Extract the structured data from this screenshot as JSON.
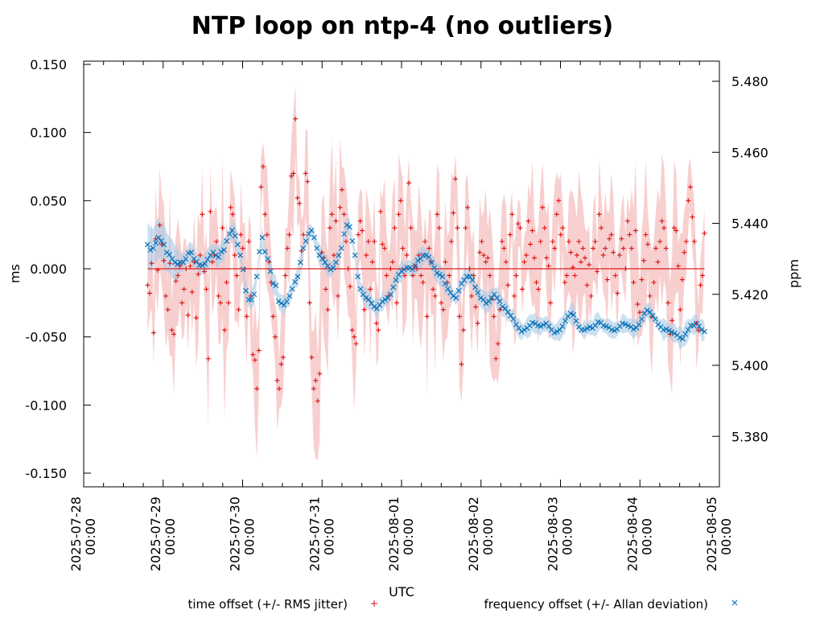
{
  "chart_data": {
    "type": "scatter",
    "title": "NTP loop on ntp-4 (no outliers)",
    "xlabel": "UTC",
    "ylabel": "ms",
    "y2label": "ppm",
    "x_start": "2025-07-28 00:00",
    "x_unit": "hours since 2025-07-28 00:00",
    "xlim": [
      0,
      192
    ],
    "ylim": [
      -0.16,
      0.152
    ],
    "y2lim": [
      5.3655,
      5.4855
    ],
    "x_ticks": [
      {
        "hours": 0,
        "date": "2025-07-28",
        "time": "00:00"
      },
      {
        "hours": 24,
        "date": "2025-07-29",
        "time": "00:00"
      },
      {
        "hours": 48,
        "date": "2025-07-30",
        "time": "00:00"
      },
      {
        "hours": 72,
        "date": "2025-07-31",
        "time": "00:00"
      },
      {
        "hours": 96,
        "date": "2025-08-01",
        "time": "00:00"
      },
      {
        "hours": 120,
        "date": "2025-08-02",
        "time": "00:00"
      },
      {
        "hours": 144,
        "date": "2025-08-03",
        "time": "00:00"
      },
      {
        "hours": 168,
        "date": "2025-08-04",
        "time": "00:00"
      },
      {
        "hours": 192,
        "date": "2025-08-05",
        "time": "00:00"
      }
    ],
    "x_minor_tick_hours": 6,
    "y_ticks": [
      {
        "value": 0.15,
        "label": "0.150"
      },
      {
        "value": 0.1,
        "label": "0.100"
      },
      {
        "value": 0.05,
        "label": "0.050"
      },
      {
        "value": 0.0,
        "label": "0.000"
      },
      {
        "value": -0.05,
        "label": "-0.050"
      },
      {
        "value": -0.1,
        "label": "-0.100"
      },
      {
        "value": -0.15,
        "label": "-0.150"
      }
    ],
    "y2_ticks": [
      {
        "value": 5.48,
        "label": "5.480"
      },
      {
        "value": 5.46,
        "label": "5.460"
      },
      {
        "value": 5.44,
        "label": "5.440"
      },
      {
        "value": 5.42,
        "label": "5.420"
      },
      {
        "value": 5.4,
        "label": "5.400"
      },
      {
        "value": 5.38,
        "label": "5.380"
      }
    ],
    "reference_line": {
      "axis": "y",
      "value": 0.0,
      "color": "#dd2222"
    },
    "legend": {
      "placement": "bottom"
    },
    "series": [
      {
        "name": "time offset (+/- RMS jitter)",
        "axis": "left",
        "marker": "+",
        "color": "#dd1111",
        "band_color": "#f5b5b5",
        "t_start_hours": 19.3,
        "t_end_hours": 187.5,
        "values": [
          -0.012,
          -0.018,
          0.004,
          -0.047,
          0.022,
          -0.001,
          0.032,
          0.018,
          0.006,
          -0.02,
          -0.03,
          0.004,
          -0.045,
          -0.048,
          -0.009,
          -0.005,
          0.002,
          -0.025,
          -0.015,
          0.0,
          -0.034,
          0.002,
          -0.017,
          0.005,
          -0.036,
          -0.004,
          0.01,
          0.04,
          -0.002,
          -0.015,
          -0.066,
          0.042,
          0.005,
          0.01,
          0.02,
          -0.02,
          -0.025,
          0.03,
          -0.045,
          -0.01,
          -0.025,
          0.045,
          0.04,
          0.01,
          -0.005,
          -0.03,
          0.025,
          0.015,
          0.0,
          -0.035,
          0.02,
          -0.02,
          -0.063,
          -0.067,
          -0.088,
          -0.06,
          0.06,
          0.075,
          0.04,
          0.025,
          0.005,
          -0.01,
          -0.035,
          -0.05,
          -0.082,
          -0.088,
          -0.07,
          -0.065,
          -0.005,
          0.015,
          0.025,
          0.068,
          0.07,
          0.11,
          0.052,
          0.048,
          0.013,
          0.025,
          0.07,
          0.064,
          -0.025,
          -0.065,
          -0.088,
          -0.082,
          -0.097,
          -0.077,
          0.012,
          0.008,
          -0.015,
          -0.03,
          0.03,
          0.04,
          0.01,
          0.035,
          -0.02,
          0.045,
          0.058,
          0.04,
          0.02,
          0.0,
          -0.013,
          -0.045,
          -0.05,
          -0.055,
          0.025,
          0.035,
          0.028,
          -0.03,
          0.01,
          0.02,
          -0.015,
          0.005,
          0.02,
          -0.04,
          -0.045,
          0.042,
          0.018,
          0.015,
          -0.005,
          -0.02,
          0.0,
          0.005,
          0.03,
          -0.025,
          0.04,
          0.05,
          0.015,
          -0.005,
          0.01,
          0.063,
          0.03,
          -0.005,
          0.002,
          0.0,
          0.01,
          -0.005,
          -0.01,
          0.02,
          -0.035,
          0.015,
          0.005,
          -0.015,
          -0.02,
          0.04,
          0.03,
          -0.025,
          -0.03,
          0.005,
          -0.01,
          -0.005,
          0.02,
          0.041,
          0.066,
          0.03,
          -0.035,
          -0.07,
          -0.045,
          0.03,
          0.045,
          0.0,
          -0.02,
          -0.005,
          -0.028,
          -0.04,
          0.012,
          0.02,
          0.01,
          0.005,
          0.008,
          -0.005,
          -0.022,
          -0.035,
          -0.066,
          -0.055,
          -0.03,
          0.02,
          0.015,
          0.005,
          -0.012,
          0.025,
          0.04,
          -0.02,
          -0.005,
          0.033,
          0.03,
          -0.015,
          0.005,
          0.01,
          0.035,
          0.018,
          0.028,
          0.008,
          -0.01,
          -0.015,
          0.02,
          0.045,
          0.03,
          0.008,
          0.002,
          -0.025,
          0.02,
          0.015,
          0.04,
          0.05,
          0.025,
          0.03,
          -0.01,
          -0.005,
          0.02,
          0.012,
          0.001,
          -0.005,
          0.01,
          0.02,
          0.005,
          0.015,
          0.008,
          -0.012,
          0.003,
          -0.02,
          0.015,
          0.02,
          -0.002,
          0.04,
          0.03,
          0.01,
          0.015,
          -0.008,
          0.022,
          0.025,
          0.012,
          -0.005,
          -0.018,
          0.01,
          0.022,
          0.015,
          0.0,
          0.035,
          0.025,
          0.015,
          -0.01,
          0.028,
          -0.026,
          -0.032,
          -0.008,
          0.006,
          0.025,
          0.018,
          -0.02,
          -0.035,
          -0.01,
          0.015,
          0.005,
          0.02,
          0.035,
          0.03,
          0.015,
          -0.025,
          -0.048,
          -0.038,
          0.03,
          0.028,
          0.002,
          -0.03,
          -0.008,
          0.012,
          0.02,
          0.05,
          0.06,
          0.038,
          0.02,
          -0.04,
          -0.045,
          -0.012,
          -0.005,
          0.026
        ]
      },
      {
        "name": "frequency offset (+/- Allan deviation)",
        "axis": "right",
        "marker": "x",
        "color": "#0a72b8",
        "band_color": "#a9cbe6",
        "t_start_hours": 19.3,
        "t_end_hours": 187.5,
        "values": [
          5.434,
          5.4325,
          5.433,
          5.4345,
          5.436,
          5.435,
          5.434,
          5.4318,
          5.4312,
          5.43,
          5.429,
          5.4285,
          5.429,
          5.429,
          5.43,
          5.4316,
          5.4318,
          5.43,
          5.4292,
          5.4282,
          5.4282,
          5.4286,
          5.4298,
          5.431,
          5.4318,
          5.431,
          5.4305,
          5.432,
          5.4325,
          5.435,
          5.437,
          5.438,
          5.4365,
          5.434,
          5.431,
          5.427,
          5.421,
          5.4185,
          5.4185,
          5.42,
          5.425,
          5.432,
          5.436,
          5.432,
          5.43,
          5.4265,
          5.423,
          5.4225,
          5.418,
          5.4175,
          5.417,
          5.418,
          5.4195,
          5.4215,
          5.4235,
          5.425,
          5.429,
          5.433,
          5.435,
          5.437,
          5.438,
          5.436,
          5.433,
          5.431,
          5.43,
          5.429,
          5.428,
          5.427,
          5.4275,
          5.429,
          5.431,
          5.433,
          5.437,
          5.4395,
          5.439,
          5.435,
          5.431,
          5.425,
          5.4215,
          5.42,
          5.419,
          5.4185,
          5.4175,
          5.4165,
          5.416,
          5.417,
          5.418,
          5.4185,
          5.419,
          5.42,
          5.422,
          5.424,
          5.4255,
          5.4265,
          5.427,
          5.4275,
          5.4275,
          5.427,
          5.428,
          5.4295,
          5.43,
          5.431,
          5.431,
          5.4305,
          5.429,
          5.4275,
          5.426,
          5.4255,
          5.425,
          5.423,
          5.4215,
          5.4205,
          5.4195,
          5.419,
          5.421,
          5.423,
          5.424,
          5.425,
          5.425,
          5.424,
          5.422,
          5.4205,
          5.419,
          5.4185,
          5.4175,
          5.418,
          5.419,
          5.42,
          5.419,
          5.418,
          5.4165,
          5.416,
          5.415,
          5.414,
          5.413,
          5.4115,
          5.4105,
          5.4095,
          5.41,
          5.4105,
          5.4112,
          5.412,
          5.4118,
          5.4112,
          5.411,
          5.4114,
          5.4118,
          5.411,
          5.41,
          5.4092,
          5.4095,
          5.41,
          5.411,
          5.4125,
          5.4138,
          5.4146,
          5.4142,
          5.4125,
          5.4108,
          5.41,
          5.41,
          5.4104,
          5.4108,
          5.4105,
          5.4112,
          5.4122,
          5.412,
          5.4112,
          5.411,
          5.4106,
          5.41,
          5.4098,
          5.4102,
          5.411,
          5.4118,
          5.4116,
          5.4112,
          5.4108,
          5.4102,
          5.4106,
          5.4115,
          5.413,
          5.4146,
          5.4155,
          5.415,
          5.414,
          5.413,
          5.4115,
          5.4108,
          5.41,
          5.4102,
          5.4098,
          5.4094,
          5.409,
          5.4085,
          5.4078,
          5.4075,
          5.4088,
          5.41,
          5.4112,
          5.4112,
          5.4118,
          5.411,
          5.41,
          5.4095
        ]
      }
    ]
  }
}
